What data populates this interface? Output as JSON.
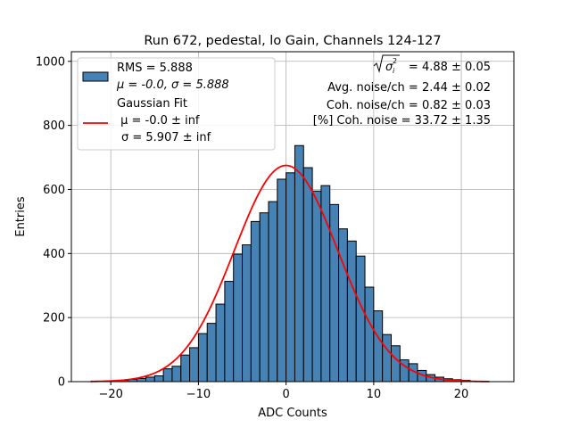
{
  "chart_data": {
    "type": "bar",
    "title": "Run 672, pedestal, lo Gain, Channels 124-127",
    "xlabel": "ADC Counts",
    "ylabel": "Entries",
    "xlim": [
      -24.5,
      26
    ],
    "ylim": [
      0,
      1030
    ],
    "grid": true,
    "xticks": [
      -20,
      -10,
      0,
      10,
      20
    ],
    "yticks": [
      0,
      200,
      400,
      600,
      800,
      1000
    ],
    "bin_width": 1,
    "bin_starts": [
      -20,
      -19,
      -18,
      -17,
      -16,
      -15,
      -14,
      -13,
      -12,
      -11,
      -10,
      -9,
      -8,
      -7,
      -6,
      -5,
      -4,
      -3,
      -2,
      -1,
      0,
      1,
      2,
      3,
      4,
      5,
      6,
      7,
      8,
      9,
      10,
      11,
      12,
      13,
      14,
      15,
      16,
      17,
      18,
      19,
      20
    ],
    "values": [
      2,
      4,
      7,
      10,
      14,
      18,
      40,
      48,
      83,
      106,
      150,
      182,
      242,
      313,
      398,
      427,
      500,
      527,
      562,
      632,
      652,
      737,
      668,
      595,
      612,
      553,
      477,
      439,
      392,
      295,
      221,
      147,
      112,
      68,
      56,
      35,
      22,
      14,
      9,
      6,
      4
    ],
    "fit": {
      "mu": 0.0,
      "sigma": 5.907,
      "amplitude": 675,
      "range": [
        -22.3,
        23.2
      ]
    },
    "colors": {
      "bars": "#4682b4",
      "bar_edge": "#000000",
      "fit_line": "#ff0000",
      "grid": "#b0b0b0"
    },
    "legend": {
      "placement": "top-left",
      "entries": [
        {
          "label_line1": "RMS = 5.888",
          "label_line2": "μ = -0.0, σ = 5.888"
        },
        {
          "label_line1": "Gaussian Fit",
          "label_line2": " μ = -0.0 ± inf",
          "label_line3": "σ = 5.907 ± inf"
        }
      ]
    },
    "annotations": {
      "line1_value": " = 4.88 ± 0.05",
      "line2": "Avg. noise/ch = 2.44 ± 0.02",
      "line3": "Coh. noise/ch = 0.82 ± 0.03",
      "line4": "[%] Coh. noise = 33.72 ± 1.35"
    }
  }
}
